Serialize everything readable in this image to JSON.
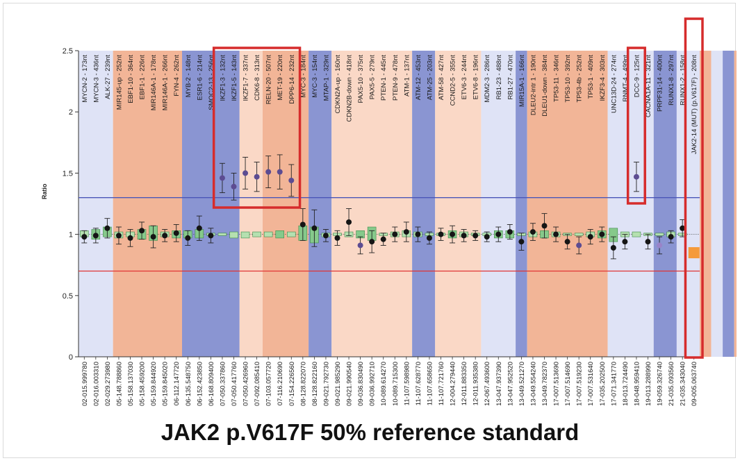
{
  "caption": "JAK2 p.V617F 50% reference standard",
  "colors": {
    "band_light_blue": "#dfe3f6",
    "band_dark_blue": "#8a95d2",
    "band_orange": "#f2b597",
    "band_light_orange": "#fad8c6",
    "box_green": "#86c98b",
    "box_light_green": "#b5e0b0",
    "upper_threshold": "#4a56b8",
    "lower_threshold": "#e03434",
    "highlight": "#d62c2c",
    "point_dark": "#151515",
    "point_purple": "#5c4c92",
    "point_light_purple": "#9a83c8",
    "mutant_marker": "#f59a3a"
  },
  "chart_data": {
    "type": "box-scatter",
    "title": "JAK2 p.V617F 50% reference standard",
    "xlabel": "",
    "ylabel": "Ratio",
    "ylim": [
      0,
      2.5
    ],
    "yticks": [
      "0",
      "0.5",
      "1",
      "1.5",
      "2",
      "2.5"
    ],
    "thresholds": {
      "upper": 1.3,
      "lower": 0.7
    },
    "bands": [
      {
        "type": "light_blue",
        "from": 0,
        "to": 3
      },
      {
        "type": "orange",
        "from": 3,
        "to": 9
      },
      {
        "type": "dark_blue",
        "from": 9,
        "to": 14
      },
      {
        "type": "light_orange",
        "from": 14,
        "to": 16
      },
      {
        "type": "orange",
        "from": 16,
        "to": 20
      },
      {
        "type": "dark_blue",
        "from": 20,
        "to": 22
      },
      {
        "type": "light_orange",
        "from": 22,
        "to": 29
      },
      {
        "type": "dark_blue",
        "from": 29,
        "to": 31
      },
      {
        "type": "light_orange",
        "from": 31,
        "to": 35
      },
      {
        "type": "light_blue",
        "from": 35,
        "to": 38
      },
      {
        "type": "dark_blue",
        "from": 38,
        "to": 39
      },
      {
        "type": "orange",
        "from": 39,
        "to": 46
      },
      {
        "type": "light_blue",
        "from": 46,
        "to": 50
      },
      {
        "type": "dark_blue",
        "from": 50,
        "to": 52
      },
      {
        "type": "light_blue",
        "from": 52,
        "to": 54
      },
      {
        "type": "orange",
        "from": 54,
        "to": 55
      },
      {
        "type": "light_blue",
        "from": 55,
        "to": 56
      },
      {
        "type": "dark_blue",
        "from": 56,
        "to": 57
      },
      {
        "type": "orange",
        "from": 57,
        "to": 59
      },
      {
        "type": "light_blue",
        "from": 59,
        "to": 60
      }
    ],
    "probes": [
      {
        "name": "MYCN-2 - 173nt",
        "position": "02-015.999780",
        "ratio": 0.98,
        "err": 0.05,
        "box": [
          0.98,
          1.03
        ],
        "color": "dark"
      },
      {
        "name": "MYCN-3 - 436nt",
        "position": "02-016.003310",
        "ratio": 0.99,
        "err": 0.06,
        "box": [
          0.96,
          1.04
        ],
        "color": "dark"
      },
      {
        "name": "ALK-27 - 239nt",
        "position": "02-029.273980",
        "ratio": 1.05,
        "err": 0.08,
        "box": [
          0.98,
          1.06
        ],
        "color": "dark"
      },
      {
        "name": "MIR145-up - 252nt",
        "position": "05-148.788860",
        "ratio": 0.99,
        "err": 0.07,
        "box": [
          0.97,
          1.02
        ],
        "color": "dark"
      },
      {
        "name": "EBF1-10 - 364nt",
        "position": "05-158.137030",
        "ratio": 0.97,
        "err": 0.07,
        "box": [
          0.98,
          1.02
        ],
        "color": "dark"
      },
      {
        "name": "EBF1-1 - 226nt",
        "position": "05-158.459200",
        "ratio": 1.03,
        "err": 0.07,
        "box": [
          0.96,
          1.04
        ],
        "color": "dark"
      },
      {
        "name": "MIR146A-1 - 178nt",
        "position": "05-159.844920",
        "ratio": 0.98,
        "err": 0.09,
        "box": [
          0.95,
          1.07
        ],
        "color": "dark"
      },
      {
        "name": "MIR146A-1 - 266nt",
        "position": "05-159.845020",
        "ratio": 0.99,
        "err": 0.05,
        "box": [
          0.98,
          1.02
        ],
        "color": "dark"
      },
      {
        "name": "FYN-4 - 262nt",
        "position": "06-112.147720",
        "ratio": 1.01,
        "err": 0.07,
        "box": [
          0.97,
          1.03
        ],
        "color": "dark"
      },
      {
        "name": "MYB-2 - 148nt",
        "position": "06-135.548750",
        "ratio": 0.97,
        "err": 0.06,
        "box": [
          0.97,
          1.03
        ],
        "color": "dark"
      },
      {
        "name": "ESR1-6 - 214nt",
        "position": "06-152.423850",
        "ratio": 1.05,
        "err": 0.1,
        "box": [
          0.97,
          1.04
        ],
        "color": "dark"
      },
      {
        "name": "SMOC2-13 - 256nt",
        "position": "06-168.809400",
        "ratio": 0.99,
        "err": 0.06,
        "box": [
          0.99,
          1.01
        ],
        "color": "dark"
      },
      {
        "name": "IKZF1-3 - 132nt",
        "position": "07-050.337860",
        "ratio": 1.46,
        "err": 0.12,
        "box": [
          0.99,
          1.01
        ],
        "color": "purple"
      },
      {
        "name": "IKZF1-5 - 143nt",
        "position": "07-050.417760",
        "ratio": 1.39,
        "err": 0.11,
        "box": [
          0.97,
          1.02
        ],
        "color": "purple"
      },
      {
        "name": "IKZF1-7 - 337nt",
        "position": "07-050.426960",
        "ratio": 1.5,
        "err": 0.13,
        "box": [
          0.97,
          1.02
        ],
        "color": "purple"
      },
      {
        "name": "CDK6-8 - 313nt",
        "position": "07-092.085410",
        "ratio": 1.47,
        "err": 0.12,
        "box": [
          0.98,
          1.02
        ],
        "color": "purple"
      },
      {
        "name": "RELN-20 - 507nt",
        "position": "07-103.057720",
        "ratio": 1.51,
        "err": 0.13,
        "box": [
          0.98,
          1.02
        ],
        "color": "purple"
      },
      {
        "name": "MET-19 - 220nt",
        "position": "07-116.210690",
        "ratio": 1.51,
        "err": 0.14,
        "box": [
          0.97,
          1.03
        ],
        "color": "purple"
      },
      {
        "name": "DPP6-14 - 232nt",
        "position": "07-154.226560",
        "ratio": 1.44,
        "err": 0.13,
        "box": [
          0.98,
          1.02
        ],
        "color": "purple"
      },
      {
        "name": "MYC-3 - 184nt",
        "position": "08-128.822070",
        "ratio": 1.08,
        "err": 0.13,
        "box": [
          0.95,
          1.07
        ],
        "color": "dark"
      },
      {
        "name": "MYC-3 - 154nt",
        "position": "08-128.822160",
        "ratio": 1.05,
        "err": 0.15,
        "box": [
          0.93,
          1.06
        ],
        "color": "dark"
      },
      {
        "name": "MTAP-1 - 329nt",
        "position": "09-021.792730",
        "ratio": 0.99,
        "err": 0.05,
        "box": [
          0.98,
          1.01
        ],
        "color": "dark"
      },
      {
        "name": "CDKN2A-up - 160nt",
        "position": "09-021.985290",
        "ratio": 0.97,
        "err": 0.06,
        "box": [
          0.99,
          1.01
        ],
        "color": "dark"
      },
      {
        "name": "CDKN2B-down - 418nt",
        "position": "09-021.990540",
        "ratio": 1.1,
        "err": 0.11,
        "box": [
          0.98,
          1.02
        ],
        "color": "dark"
      },
      {
        "name": "PAX5-10 - 375nt",
        "position": "09-036.830490",
        "ratio": 0.91,
        "err": 0.07,
        "box": [
          0.97,
          1.03
        ],
        "color": "purple"
      },
      {
        "name": "PAX5-5 - 279nt",
        "position": "09-036.992710",
        "ratio": 0.94,
        "err": 0.09,
        "box": [
          0.95,
          1.06
        ],
        "color": "dark"
      },
      {
        "name": "PTEN-1 - 445nt",
        "position": "10-089.614270",
        "ratio": 0.96,
        "err": 0.05,
        "box": [
          0.99,
          1.01
        ],
        "color": "dark"
      },
      {
        "name": "PTEN-9 - 478nt",
        "position": "10-089.715300",
        "ratio": 1.0,
        "err": 0.06,
        "box": [
          0.98,
          1.02
        ],
        "color": "dark"
      },
      {
        "name": "ATM-1 - 137nt",
        "position": "11-107.598980",
        "ratio": 1.02,
        "err": 0.08,
        "box": [
          0.98,
          1.03
        ],
        "color": "dark"
      },
      {
        "name": "ATM-12 - 453nt",
        "position": "11-107.628770",
        "ratio": 1.0,
        "err": 0.06,
        "box": [
          0.98,
          1.02
        ],
        "color": "dark"
      },
      {
        "name": "ATM-25 - 203nt",
        "position": "11-107.658650",
        "ratio": 0.97,
        "err": 0.05,
        "box": [
          0.99,
          1.01
        ],
        "color": "dark"
      },
      {
        "name": "ATM-58 - 427nt",
        "position": "11-107.721760",
        "ratio": 1.0,
        "err": 0.05,
        "box": [
          0.99,
          1.01
        ],
        "color": "dark"
      },
      {
        "name": "CCND2-5 - 355nt",
        "position": "12-004.279440",
        "ratio": 1.0,
        "err": 0.07,
        "box": [
          0.97,
          1.03
        ],
        "color": "dark"
      },
      {
        "name": "ETV6-3 - 244nt",
        "position": "12-011.883350",
        "ratio": 0.99,
        "err": 0.05,
        "box": [
          0.98,
          1.02
        ],
        "color": "dark"
      },
      {
        "name": "ETV6-8 - 196nt",
        "position": "12-011.935380",
        "ratio": 0.99,
        "err": 0.04,
        "box": [
          0.99,
          1.01
        ],
        "color": "dark"
      },
      {
        "name": "MDM2-3 - 286nt",
        "position": "12-067.493600",
        "ratio": 0.98,
        "err": 0.04,
        "box": [
          0.99,
          1.01
        ],
        "color": "dark"
      },
      {
        "name": "RB1-23 - 488nt",
        "position": "13-047.937390",
        "ratio": 1.0,
        "err": 0.06,
        "box": [
          0.97,
          1.03
        ],
        "color": "dark"
      },
      {
        "name": "RB1-27 - 470nt",
        "position": "13-047.952520",
        "ratio": 1.02,
        "err": 0.06,
        "box": [
          0.97,
          1.03
        ],
        "color": "dark"
      },
      {
        "name": "MIR15A-1 - 166nt",
        "position": "13-049.521270",
        "ratio": 0.94,
        "err": 0.07,
        "box": [
          0.99,
          1.01
        ],
        "color": "dark"
      },
      {
        "name": "DLEU2-intr 1 - 190nt",
        "position": "13-049.554240",
        "ratio": 1.02,
        "err": 0.07,
        "box": [
          0.98,
          1.02
        ],
        "color": "dark"
      },
      {
        "name": "DLEU1-down - 384nt",
        "position": "13-049.782370",
        "ratio": 1.07,
        "err": 0.1,
        "box": [
          0.97,
          1.03
        ],
        "color": "dark"
      },
      {
        "name": "TP53-11 - 346nt",
        "position": "17-007.513690",
        "ratio": 1.0,
        "err": 0.06,
        "box": [
          0.98,
          1.02
        ],
        "color": "dark"
      },
      {
        "name": "TP53-10 - 392nt",
        "position": "17-007.514690",
        "ratio": 0.94,
        "err": 0.06,
        "box": [
          0.99,
          1.01
        ],
        "color": "dark"
      },
      {
        "name": "TP53-4b - 252nt",
        "position": "17-007.519230",
        "ratio": 0.91,
        "err": 0.07,
        "box": [
          0.99,
          1.01
        ],
        "color": "purple"
      },
      {
        "name": "TP53-1 - 409nt",
        "position": "17-007.531640",
        "ratio": 0.98,
        "err": 0.06,
        "box": [
          0.98,
          1.02
        ],
        "color": "dark"
      },
      {
        "name": "IKZF3-4 - 303nt",
        "position": "17-035.202500",
        "ratio": 1.0,
        "err": 0.06,
        "box": [
          0.97,
          1.03
        ],
        "color": "dark"
      },
      {
        "name": "UNC13D-24 - 274nt",
        "position": "17-071.341770",
        "ratio": 0.89,
        "err": 0.09,
        "box": [
          0.94,
          1.05
        ],
        "color": "dark"
      },
      {
        "name": "RNMT-4 - 499nt",
        "position": "18-013.724490",
        "ratio": 0.94,
        "err": 0.06,
        "box": [
          0.98,
          1.02
        ],
        "color": "dark"
      },
      {
        "name": "DCC-9 - 125nt",
        "position": "18-048.959410",
        "ratio": 1.47,
        "err": 0.12,
        "box": [
          0.98,
          1.02
        ],
        "color": "purple"
      },
      {
        "name": "CACNA1A-11 - 321nt",
        "position": "19-013.288990",
        "ratio": 0.94,
        "err": 0.06,
        "box": [
          0.99,
          1.01
        ],
        "color": "dark"
      },
      {
        "name": "PRPF31-14 - 400nt",
        "position": "19-059.326740",
        "ratio": 0.91,
        "err": 0.07,
        "box": [
          0.99,
          1.01
        ],
        "color": "lightpurple"
      },
      {
        "name": "RUNX1-8 - 297nt",
        "position": "21-035.093560",
        "ratio": 0.98,
        "err": 0.05,
        "box": [
          0.98,
          1.02
        ],
        "color": "dark"
      },
      {
        "name": "RUNX1-2 - 158nt",
        "position": "21-035.343040",
        "ratio": 1.05,
        "err": 0.07,
        "box": [
          0.99,
          1.01
        ],
        "color": "dark"
      },
      {
        "name": "JAK2-14 (MUT) (p.V617F) - 208nt",
        "position": "09-005.063740",
        "ratio": 0.85,
        "err": 0,
        "box": null,
        "color": "mutant"
      }
    ],
    "highlight_groups": [
      {
        "from": 12,
        "to": 18
      },
      {
        "from": 48,
        "to": 48
      },
      {
        "from": 53,
        "to": 53
      }
    ]
  }
}
